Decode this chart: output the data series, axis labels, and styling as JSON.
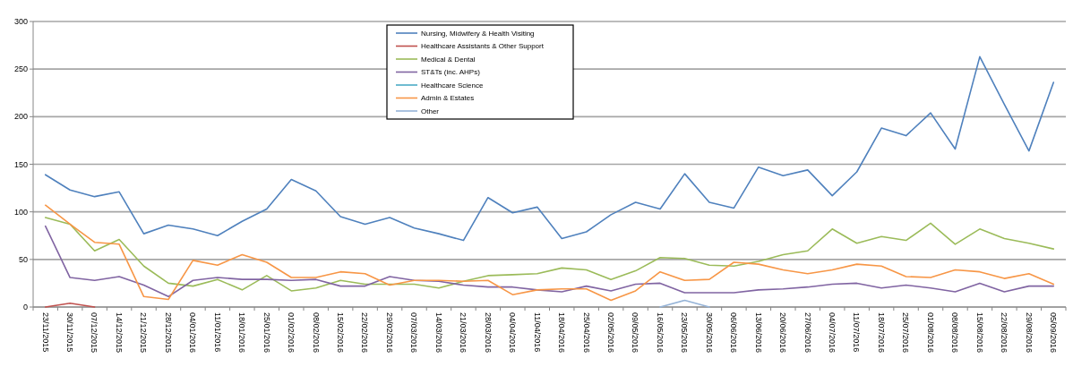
{
  "chart_data": {
    "type": "line",
    "categories": [
      "23/11/2015",
      "30/11/2015",
      "07/12/2015",
      "14/12/2015",
      "21/12/2015",
      "28/12/2015",
      "04/01/2016",
      "11/01/2016",
      "18/01/2016",
      "25/01/2016",
      "01/02/2016",
      "08/02/2016",
      "15/02/2016",
      "22/02/2016",
      "29/02/2016",
      "07/03/2016",
      "14/03/2016",
      "21/03/2016",
      "28/03/2016",
      "04/04/2016",
      "11/04/2016",
      "18/04/2016",
      "25/04/2016",
      "02/05/2016",
      "09/05/2016",
      "16/05/2016",
      "23/05/2016",
      "30/05/2016",
      "06/06/2016",
      "13/06/2016",
      "20/06/2016",
      "27/06/2016",
      "04/07/2016",
      "11/07/2016",
      "18/07/2016",
      "25/07/2016",
      "01/08/2016",
      "08/08/2016",
      "15/08/2016",
      "22/08/2016",
      "29/08/2016",
      "05/09/2016"
    ],
    "series": [
      {
        "name": "Nursing, Midwifery & Health Visiting",
        "color": "#4f81bd",
        "values": [
          139,
          123,
          116,
          121,
          77,
          86,
          82,
          75,
          90,
          103,
          134,
          122,
          95,
          87,
          94,
          83,
          77,
          70,
          115,
          99,
          105,
          72,
          79,
          97,
          110,
          103,
          140,
          110,
          104,
          147,
          138,
          144,
          117,
          142,
          188,
          180,
          204,
          166,
          263,
          213,
          164,
          236
        ]
      },
      {
        "name": "Healthcare Assistants & Other Support",
        "color": "#c0504d",
        "values": [
          0,
          4,
          0,
          null,
          null,
          null,
          null,
          null,
          null,
          null,
          null,
          null,
          null,
          null,
          null,
          null,
          null,
          null,
          null,
          null,
          null,
          null,
          null,
          null,
          null,
          null,
          null,
          null,
          null,
          null,
          null,
          null,
          null,
          null,
          null,
          null,
          null,
          null,
          null,
          null,
          null,
          null
        ]
      },
      {
        "name": "Medical & Dental",
        "color": "#9bbb59",
        "values": [
          94,
          87,
          59,
          71,
          43,
          25,
          22,
          29,
          18,
          33,
          17,
          20,
          28,
          24,
          24,
          24,
          20,
          27,
          33,
          34,
          35,
          41,
          39,
          29,
          38,
          52,
          51,
          44,
          43,
          48,
          55,
          59,
          82,
          67,
          74,
          70,
          88,
          66,
          82,
          72,
          67,
          61
        ]
      },
      {
        "name": "ST&Ts (inc. AHPs)",
        "color": "#8064a2",
        "values": [
          85,
          31,
          28,
          32,
          23,
          11,
          28,
          31,
          29,
          29,
          28,
          29,
          22,
          22,
          32,
          28,
          27,
          23,
          21,
          21,
          18,
          16,
          22,
          17,
          24,
          25,
          15,
          15,
          15,
          18,
          19,
          21,
          24,
          25,
          20,
          23,
          20,
          16,
          25,
          16,
          22,
          22
        ]
      },
      {
        "name": "Healthcare Science",
        "color": "#4bacc6",
        "values": [
          null,
          null,
          null,
          null,
          null,
          null,
          null,
          null,
          null,
          null,
          null,
          null,
          null,
          null,
          null,
          null,
          null,
          null,
          null,
          null,
          null,
          null,
          null,
          null,
          null,
          null,
          null,
          null,
          null,
          null,
          null,
          null,
          null,
          null,
          null,
          null,
          null,
          null,
          null,
          null,
          null,
          null
        ]
      },
      {
        "name": "Admin & Estates",
        "color": "#f79646",
        "values": [
          107,
          87,
          68,
          66,
          11,
          8,
          49,
          44,
          55,
          47,
          31,
          31,
          37,
          35,
          23,
          28,
          28,
          27,
          28,
          13,
          18,
          19,
          19,
          7,
          17,
          37,
          28,
          29,
          47,
          45,
          39,
          35,
          39,
          45,
          43,
          32,
          31,
          39,
          37,
          30,
          35,
          24
        ]
      },
      {
        "name": "Other",
        "color": "#95b3d7",
        "values": [
          null,
          null,
          null,
          null,
          null,
          null,
          null,
          null,
          null,
          null,
          null,
          null,
          null,
          null,
          null,
          null,
          null,
          null,
          null,
          null,
          null,
          null,
          null,
          null,
          null,
          0,
          7,
          0,
          null,
          null,
          null,
          null,
          null,
          null,
          null,
          null,
          null,
          null,
          null,
          null,
          null,
          null
        ]
      }
    ],
    "ylim": [
      0,
      300
    ],
    "yticks": [
      0,
      50,
      100,
      150,
      200,
      250,
      300
    ],
    "grid": "y",
    "legend": "top"
  }
}
